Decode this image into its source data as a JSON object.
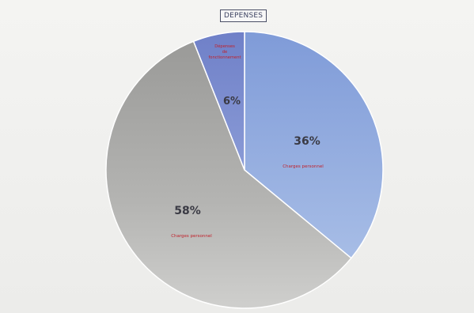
{
  "chart_data": {
    "type": "pie",
    "title": "DEPENSES",
    "slices": [
      {
        "percent_label": "36%",
        "value": 36,
        "category_label": "Charges personnel",
        "color": "#8ea8dc"
      },
      {
        "percent_label": "58%",
        "value": 58,
        "category_label": "Charges personnel",
        "color": "#a9a9a6"
      },
      {
        "percent_label": "6%",
        "value": 6,
        "category_label": "Dépenses de fonctionnement",
        "color": "#7d8fd0"
      }
    ],
    "legend": "none",
    "start_angle_deg": 0,
    "direction": "clockwise"
  }
}
